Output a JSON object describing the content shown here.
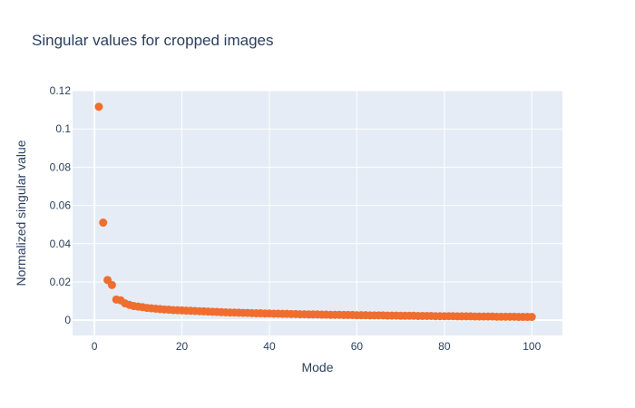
{
  "chart_data": {
    "type": "scatter",
    "title": "Singular values for cropped images",
    "xlabel": "Mode",
    "ylabel": "Normalized singular value",
    "xlim": [
      -5,
      107
    ],
    "ylim": [
      -0.008,
      0.12
    ],
    "xticks": [
      0,
      20,
      40,
      60,
      80,
      100
    ],
    "yticks": [
      0,
      0.02,
      0.04,
      0.06,
      0.08,
      0.1,
      0.12
    ],
    "xtick_labels": [
      "0",
      "20",
      "40",
      "60",
      "80",
      "100"
    ],
    "ytick_labels": [
      "0",
      "0.02",
      "0.04",
      "0.06",
      "0.08",
      "0.1",
      "0.12"
    ],
    "grid": true,
    "colors": {
      "marker": "#ef6e2f",
      "plot_bg": "#e5ecf6",
      "grid": "#ffffff",
      "text": "#2a3f5f"
    },
    "series": [
      {
        "x": [
          1,
          2,
          3,
          4,
          5,
          6,
          7,
          8,
          9,
          10,
          11,
          12,
          13,
          14,
          15,
          16,
          17,
          18,
          19,
          20,
          21,
          22,
          23,
          24,
          25,
          26,
          27,
          28,
          29,
          30,
          31,
          32,
          33,
          34,
          35,
          36,
          37,
          38,
          39,
          40,
          41,
          42,
          43,
          44,
          45,
          46,
          47,
          48,
          49,
          50,
          51,
          52,
          53,
          54,
          55,
          56,
          57,
          58,
          59,
          60,
          61,
          62,
          63,
          64,
          65,
          66,
          67,
          68,
          69,
          70,
          71,
          72,
          73,
          74,
          75,
          76,
          77,
          78,
          79,
          80,
          81,
          82,
          83,
          84,
          85,
          86,
          87,
          88,
          89,
          90,
          91,
          92,
          93,
          94,
          95,
          96,
          97,
          98,
          99,
          100
        ],
        "values": [
          0.1116,
          0.051,
          0.021,
          0.0184,
          0.0108,
          0.0104,
          0.0088,
          0.008,
          0.0074,
          0.0071,
          0.0068,
          0.0064,
          0.0062,
          0.006,
          0.0058,
          0.0056,
          0.0055,
          0.0053,
          0.0052,
          0.0051,
          0.005,
          0.0049,
          0.0048,
          0.0047,
          0.0046,
          0.0045,
          0.0044,
          0.0043,
          0.0042,
          0.0041,
          0.004,
          0.004,
          0.0039,
          0.0038,
          0.0038,
          0.0037,
          0.0036,
          0.0036,
          0.0035,
          0.0035,
          0.0034,
          0.0034,
          0.0033,
          0.0033,
          0.0032,
          0.0032,
          0.0031,
          0.0031,
          0.003,
          0.003,
          0.003,
          0.0029,
          0.0029,
          0.0028,
          0.0028,
          0.0028,
          0.0027,
          0.0027,
          0.0027,
          0.0026,
          0.0026,
          0.0026,
          0.0025,
          0.0025,
          0.0025,
          0.0025,
          0.0024,
          0.0024,
          0.0024,
          0.0023,
          0.0023,
          0.0023,
          0.0023,
          0.0022,
          0.0022,
          0.0022,
          0.0022,
          0.0021,
          0.0021,
          0.0021,
          0.0021,
          0.0021,
          0.002,
          0.002,
          0.002,
          0.002,
          0.0019,
          0.0019,
          0.0019,
          0.0019,
          0.0019,
          0.0018,
          0.0018,
          0.0018,
          0.0018,
          0.0018,
          0.0017,
          0.0017,
          0.0017,
          0.0017
        ]
      }
    ]
  }
}
